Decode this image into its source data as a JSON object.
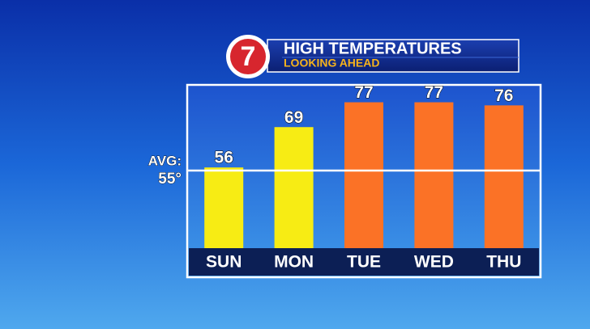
{
  "chart_data": {
    "type": "bar",
    "logo": "7",
    "title": "HIGH TEMPERATURES",
    "subtitle": "LOOKING AHEAD",
    "categories": [
      "SUN",
      "MON",
      "TUE",
      "WED",
      "THU"
    ],
    "values": [
      56,
      69,
      77,
      77,
      76
    ],
    "colors": [
      "#f7ec14",
      "#f7ec14",
      "#fb7226",
      "#fb7226",
      "#fb7226"
    ],
    "ylim": [
      30,
      80
    ],
    "reference_line": {
      "label": "AVG:",
      "value": 55,
      "value_label": "55°"
    }
  }
}
